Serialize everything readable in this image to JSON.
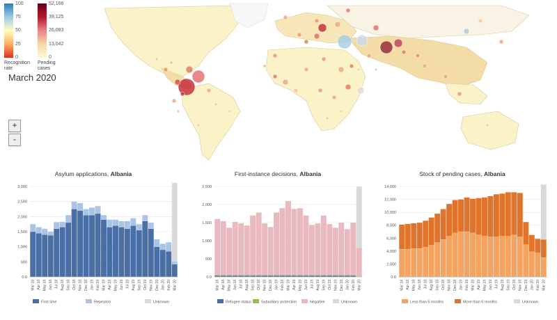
{
  "map": {
    "legend": {
      "rate_ticks": [
        "100",
        "75",
        "50",
        "25",
        "0"
      ],
      "pending_ticks": [
        "52,166",
        "39,125",
        "26,083",
        "13,042",
        "0"
      ],
      "rate_label_1": "Recognition",
      "rate_label_2": "rate",
      "pending_label_1": "Pending",
      "pending_label_2": "cases"
    },
    "period": "March 2020",
    "zoom_in": "+",
    "zoom_out": "-",
    "colors": {
      "ocean": "#ffffff",
      "land_light": "#fbf3c8",
      "land_mid": "#f2dca6",
      "border": "#d8c8a0"
    }
  },
  "chart_data": [
    {
      "type": "bar",
      "title": "Asylum applications,",
      "title_bold": "Albania",
      "categories": [
        "Mar 18",
        "Apr 18",
        "May 18",
        "Jun 18",
        "Jul 18",
        "Aug 18",
        "Sep 18",
        "Oct 18",
        "Nov 18",
        "Dec 18",
        "Jan 19",
        "Feb 19",
        "Mar 19",
        "Apr 19",
        "May 19",
        "Jun 19",
        "Jul 19",
        "Aug 19",
        "Sep 19",
        "Oct 19",
        "Nov 19",
        "Dec 19",
        "Jan 20",
        "Feb 20",
        "Mar 20"
      ],
      "tick_labels": [
        "Mar 18",
        "Apr 18",
        "May 18",
        "Jun 18",
        "Jul 18",
        "Aug 18",
        "Sep 18",
        "Oct 18",
        "Nov 18",
        "Dec 18",
        "Jan 19",
        "Feb 19",
        "Mar 19",
        "Apr 19",
        "May 19",
        "Jun 19",
        "Jul 19",
        "Aug 19",
        "Sep 19",
        "Oct 19",
        "Nov 19",
        "Dec 19",
        "Jan 20",
        "Feb 20",
        "Mar 20"
      ],
      "yticks": [
        "0.0",
        "500",
        "1,000",
        "1,500",
        "2,000",
        "2,500",
        "3,000"
      ],
      "ylim": [
        0,
        3000
      ],
      "series": [
        {
          "name": "First time",
          "color": "#4a6fa5",
          "values": [
            1500,
            1450,
            1400,
            1380,
            1600,
            1650,
            1800,
            2250,
            2200,
            2050,
            2050,
            2100,
            1900,
            1650,
            1700,
            1650,
            1600,
            1700,
            1550,
            1850,
            1600,
            1000,
            900,
            850,
            420
          ]
        },
        {
          "name": "Repeated",
          "color": "#a9c4e6",
          "values": [
            250,
            200,
            200,
            120,
            220,
            180,
            250,
            250,
            250,
            200,
            250,
            250,
            150,
            250,
            200,
            200,
            250,
            250,
            200,
            200,
            200,
            250,
            200,
            300,
            100
          ]
        },
        {
          "name": "Unknown",
          "color": "#d9d9d9",
          "values": [
            0,
            0,
            0,
            0,
            0,
            0,
            0,
            0,
            0,
            0,
            0,
            0,
            0,
            0,
            0,
            0,
            0,
            0,
            0,
            0,
            0,
            0,
            0,
            0,
            2600
          ]
        }
      ]
    },
    {
      "type": "bar",
      "title": "First-instance decisions,",
      "title_bold": "Albania",
      "categories": [
        "Mar 18",
        "Apr 18",
        "May 18",
        "Jun 18",
        "Jul 18",
        "Aug 18",
        "Sep 18",
        "Oct 18",
        "Nov 18",
        "Dec 18",
        "Jan 19",
        "Feb 19",
        "Mar 19",
        "Apr 19",
        "May 19",
        "Jun 19",
        "Jul 19",
        "Aug 19",
        "Sep 19",
        "Oct 19",
        "Nov 19",
        "Dec 19",
        "Jan 20",
        "Feb 20",
        "Mar 20"
      ],
      "tick_labels": [
        "Mar 18",
        "Apr 18",
        "May 18",
        "Jun 18",
        "Jul 18",
        "Aug 18",
        "Sep 18",
        "Oct 18",
        "Nov 18",
        "Dec 18",
        "Jan 19",
        "Feb 19",
        "Mar 19",
        "Apr 19",
        "May 19",
        "Jun 19",
        "Jul 19",
        "Aug 19",
        "Sep 19",
        "Oct 19",
        "Nov 19",
        "Dec 19",
        "Jan 20",
        "Feb 20",
        "Mar 20"
      ],
      "yticks": [
        "0.0",
        "500",
        "1,000",
        "1,500",
        "2,000",
        "2,500"
      ],
      "ylim": [
        0,
        2500
      ],
      "series": [
        {
          "name": "Refugee status",
          "color": "#4a6fa5",
          "values": [
            30,
            30,
            30,
            30,
            30,
            30,
            30,
            30,
            30,
            30,
            30,
            30,
            30,
            30,
            30,
            30,
            30,
            30,
            30,
            30,
            30,
            30,
            30,
            30,
            0
          ]
        },
        {
          "name": "Subsidiary protection",
          "color": "#8fbf4d",
          "values": [
            30,
            30,
            30,
            30,
            30,
            30,
            30,
            30,
            30,
            30,
            30,
            30,
            30,
            30,
            30,
            30,
            30,
            30,
            30,
            30,
            30,
            30,
            30,
            30,
            0
          ]
        },
        {
          "name": "Negative",
          "color": "#e8b9bf",
          "values": [
            1540,
            1480,
            1300,
            1460,
            1420,
            1360,
            1640,
            1720,
            1420,
            1320,
            1720,
            1840,
            2040,
            1820,
            1840,
            1640,
            1380,
            1420,
            1640,
            1400,
            1300,
            1440,
            1260,
            1440,
            800
          ]
        },
        {
          "name": "Unknown",
          "color": "#d9d9d9",
          "values": [
            0,
            0,
            0,
            0,
            0,
            0,
            0,
            0,
            0,
            0,
            0,
            0,
            0,
            0,
            0,
            0,
            0,
            0,
            0,
            0,
            0,
            0,
            0,
            0,
            1700
          ]
        }
      ]
    },
    {
      "type": "bar",
      "title": "Stock of pending cases,",
      "title_bold": "Albania",
      "categories": [
        "Mar 18",
        "Apr 18",
        "May 18",
        "Jun 18",
        "Jul 18",
        "Aug 18",
        "Sep 18",
        "Oct 18",
        "Nov 18",
        "Dec 18",
        "Jan 19",
        "Feb 19",
        "Mar 19",
        "Apr 19",
        "May 19",
        "Jun 19",
        "Jul 19",
        "Aug 19",
        "Sep 19",
        "Oct 19",
        "Nov 19",
        "Dec 19",
        "Jan 20",
        "Feb 20",
        "Mar 20"
      ],
      "tick_labels": [
        "Mar 18",
        "Apr 18",
        "May 18",
        "Jun 18",
        "Jul 18",
        "Aug 18",
        "Sep 18",
        "Oct 18",
        "Nov 18",
        "Dec 18",
        "Jan 19",
        "Feb 19",
        "Mar 19",
        "Apr 19",
        "May 19",
        "Jun 19",
        "Jul 19",
        "Aug 19",
        "Sep 19",
        "Oct 19",
        "Nov 19",
        "Dec 19",
        "Jan 20",
        "Feb 20",
        "Mar 20"
      ],
      "yticks": [
        "0.0",
        "2,000",
        "4,000",
        "6,000",
        "8,000",
        "10,000",
        "12,000",
        "14,000"
      ],
      "ylim": [
        0,
        14000
      ],
      "series": [
        {
          "name": "Less than 6 months",
          "color": "#f4a460",
          "values": [
            4300,
            4300,
            4400,
            4400,
            4600,
            4900,
            5300,
            5800,
            6300,
            6800,
            7000,
            7000,
            6800,
            6500,
            6300,
            6200,
            6200,
            6300,
            6300,
            6500,
            6200,
            5000,
            3900,
            3700,
            3000
          ]
        },
        {
          "name": "More than 6 months",
          "color": "#e0742a",
          "values": [
            3800,
            3900,
            3900,
            4000,
            4100,
            4300,
            4500,
            4700,
            5000,
            5100,
            5000,
            5300,
            5300,
            5700,
            6000,
            6300,
            6600,
            6600,
            6800,
            6600,
            6800,
            3500,
            2600,
            2200,
            2800
          ]
        },
        {
          "name": "Unknown",
          "color": "#d9d9d9",
          "values": [
            0,
            0,
            0,
            0,
            0,
            0,
            0,
            0,
            0,
            0,
            0,
            0,
            0,
            0,
            0,
            0,
            0,
            0,
            0,
            0,
            0,
            0,
            0,
            0,
            8500
          ]
        }
      ]
    }
  ]
}
